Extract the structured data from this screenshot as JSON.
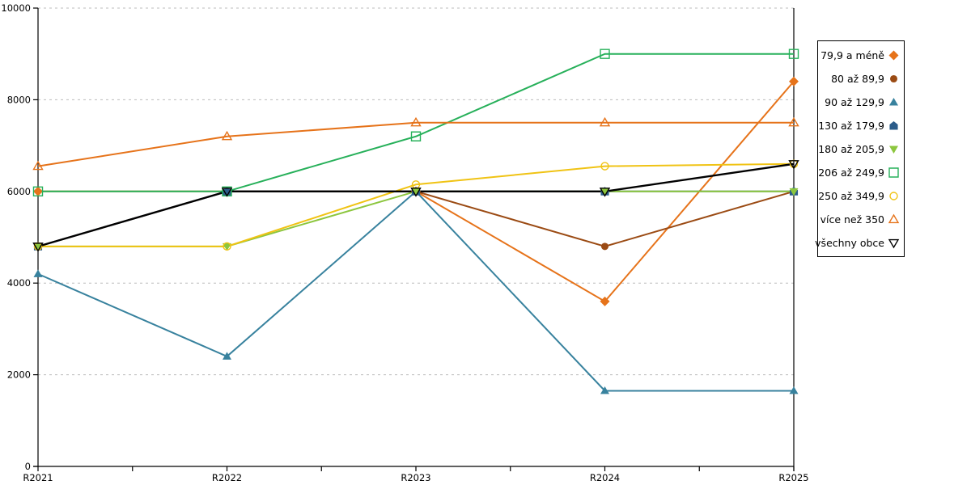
{
  "chart_data": {
    "type": "line",
    "title": "",
    "xlabel": "",
    "ylabel": "",
    "x_labels": [
      "R2021",
      "R2022",
      "R2023",
      "R2024",
      "R2025"
    ],
    "ylim": [
      0,
      10000
    ],
    "y_ticks": [
      0,
      2000,
      4000,
      6000,
      8000,
      10000
    ],
    "y_tick_labels": [
      "0",
      "2000",
      "4000",
      "6000",
      "8000",
      "10000"
    ],
    "grid": "horizontal-dashed",
    "legend_position": "right",
    "colors": {
      "grid": "#BBBBBB",
      "axis": "#000000",
      "background": "#FFFFFF"
    },
    "series": [
      {
        "name": "79,9 a méně",
        "color": "#E6731A",
        "marker": "diamond",
        "fill": "filled",
        "values": [
          6000,
          6000,
          6000,
          3600,
          8400
        ]
      },
      {
        "name": "80 až 89,9",
        "color": "#9B4B14",
        "marker": "circle",
        "fill": "filled",
        "values": [
          4800,
          6000,
          6000,
          4800,
          6000
        ]
      },
      {
        "name": "90 až 129,9",
        "color": "#38829E",
        "marker": "triangle-up",
        "fill": "filled",
        "values": [
          4200,
          2400,
          6000,
          1650,
          1650
        ]
      },
      {
        "name": "130 až 179,9",
        "color": "#2B5C8A",
        "marker": "pentagon",
        "fill": "filled",
        "values": [
          4800,
          6000,
          6000,
          6000,
          6000
        ]
      },
      {
        "name": "180 až 205,9",
        "color": "#8CC63E",
        "marker": "triangle-down",
        "fill": "filled",
        "values": [
          4800,
          4800,
          6000,
          6000,
          6000
        ]
      },
      {
        "name": "206 až 249,9",
        "color": "#27B05A",
        "marker": "square",
        "fill": "open",
        "values": [
          6000,
          6000,
          7200,
          9000,
          9000
        ]
      },
      {
        "name": "250 až 349,9",
        "color": "#F0C314",
        "marker": "circle",
        "fill": "open",
        "values": [
          4800,
          4800,
          6150,
          6550,
          6600
        ]
      },
      {
        "name": "více než 350",
        "color": "#E6731A",
        "marker": "triangle-up",
        "fill": "open",
        "values": [
          6550,
          7200,
          7500,
          7500,
          7500
        ]
      },
      {
        "name": "všechny obce",
        "color": "#000000",
        "marker": "triangle-down",
        "fill": "open",
        "values": [
          4800,
          6000,
          6000,
          6000,
          6600
        ]
      }
    ]
  }
}
